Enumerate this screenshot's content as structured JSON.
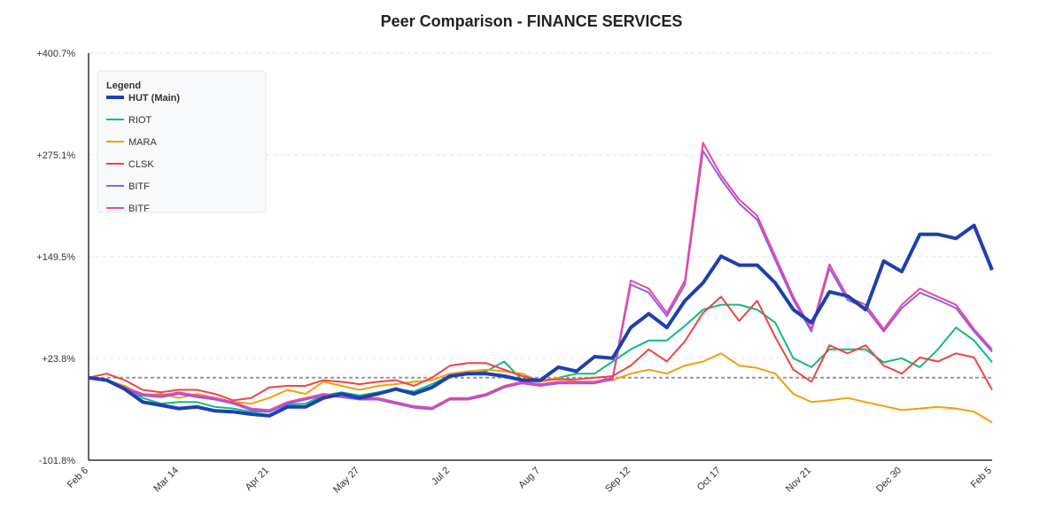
{
  "chart_data": {
    "type": "line",
    "title": "Peer Comparison - FINANCE SERVICES",
    "legend_title": "Legend",
    "legend": "top-left",
    "grid": true,
    "baseline": 0,
    "categories": [
      "Feb 6",
      null,
      null,
      null,
      null,
      "Mar 14",
      null,
      null,
      null,
      null,
      "Apr 21",
      null,
      null,
      null,
      null,
      "May 27",
      null,
      null,
      null,
      null,
      "Jul 2",
      null,
      null,
      null,
      null,
      "Aug 7",
      null,
      null,
      null,
      null,
      "Sep 12",
      null,
      null,
      null,
      null,
      "Oct 17",
      null,
      null,
      null,
      null,
      "Nov 21",
      null,
      null,
      null,
      null,
      "Dec 30",
      null,
      null,
      null,
      null,
      "Feb 5"
    ],
    "ylim": [
      -101.8,
      400.7
    ],
    "yticks": [
      {
        "value": -101.8,
        "label": "-101.8%"
      },
      {
        "value": 23.8,
        "label": "+23.8%"
      },
      {
        "value": 149.5,
        "label": "+149.5%"
      },
      {
        "value": 275.1,
        "label": "+275.1%"
      },
      {
        "value": 400.7,
        "label": "+400.7%"
      }
    ],
    "series": [
      {
        "name": "HUT (Main)",
        "color": "#1e40af",
        "values": [
          0,
          -3,
          -14,
          -30,
          -34,
          -38,
          -36,
          -41,
          -42,
          -45,
          -47,
          -36,
          -36,
          -25,
          -20,
          -25,
          -20,
          -14,
          -20,
          -12,
          2,
          5,
          5,
          2,
          -3,
          -3,
          13,
          8,
          26,
          24,
          62,
          79,
          62,
          95,
          117,
          150,
          139,
          139,
          117,
          84,
          68,
          106,
          101,
          84,
          144,
          131,
          177,
          177,
          172,
          188,
          133
        ]
      },
      {
        "name": "RIOT",
        "color": "#10b981",
        "values": [
          0,
          -2,
          -12,
          -25,
          -32,
          -30,
          -30,
          -36,
          -38,
          -42,
          -42,
          -33,
          -32,
          -22,
          -18,
          -22,
          -18,
          -14,
          -17,
          -8,
          3,
          5,
          8,
          20,
          -3,
          -5,
          0,
          5,
          5,
          20,
          35,
          46,
          46,
          64,
          84,
          90,
          90,
          84,
          68,
          24,
          13,
          35,
          35,
          35,
          19,
          24,
          13,
          35,
          62,
          46,
          19
        ]
      },
      {
        "name": "MARA",
        "color": "#f59e0b",
        "values": [
          0,
          -3,
          -10,
          -22,
          -20,
          -25,
          -20,
          -25,
          -30,
          -32,
          -25,
          -15,
          -20,
          -5,
          -10,
          -15,
          -10,
          -8,
          -5,
          -3,
          5,
          8,
          10,
          8,
          5,
          -5,
          0,
          -5,
          -5,
          -3,
          5,
          10,
          5,
          15,
          20,
          30,
          15,
          12,
          5,
          -20,
          -30,
          -28,
          -25,
          -30,
          -35,
          -40,
          -38,
          -36,
          -38,
          -42,
          -55
        ]
      },
      {
        "name": "CLSK",
        "color": "#ef4444",
        "values": [
          0,
          5,
          -3,
          -15,
          -18,
          -15,
          -15,
          -20,
          -28,
          -25,
          -12,
          -10,
          -10,
          -3,
          -5,
          -8,
          -5,
          -3,
          -10,
          0,
          15,
          18,
          18,
          10,
          2,
          -3,
          -2,
          -2,
          0,
          2,
          15,
          35,
          20,
          45,
          80,
          100,
          70,
          95,
          50,
          10,
          -5,
          40,
          30,
          40,
          15,
          5,
          25,
          20,
          30,
          25,
          -15
        ]
      },
      {
        "name": "BITF",
        "color": "#8b5cf6",
        "values": [
          0,
          -3,
          -14,
          -22,
          -24,
          -20,
          -24,
          -27,
          -32,
          -40,
          -42,
          -32,
          -27,
          -22,
          -24,
          -27,
          -27,
          -32,
          -37,
          -39,
          -27,
          -27,
          -22,
          -12,
          -7,
          -10,
          -7,
          -7,
          -7,
          -2,
          115,
          105,
          76,
          115,
          280,
          245,
          215,
          195,
          145,
          96,
          57,
          135,
          96,
          86,
          57,
          86,
          105,
          96,
          86,
          57,
          32
        ]
      },
      {
        "name": "BITF",
        "color": "#ec4899",
        "values": [
          0,
          -2,
          -12,
          -20,
          -22,
          -18,
          -22,
          -25,
          -30,
          -38,
          -40,
          -30,
          -25,
          -20,
          -22,
          -25,
          -25,
          -30,
          -35,
          -37,
          -25,
          -25,
          -20,
          -10,
          -5,
          -8,
          -5,
          -5,
          -5,
          0,
          120,
          110,
          80,
          120,
          290,
          250,
          220,
          200,
          150,
          100,
          60,
          140,
          100,
          90,
          60,
          90,
          110,
          100,
          90,
          60,
          35
        ]
      }
    ]
  }
}
